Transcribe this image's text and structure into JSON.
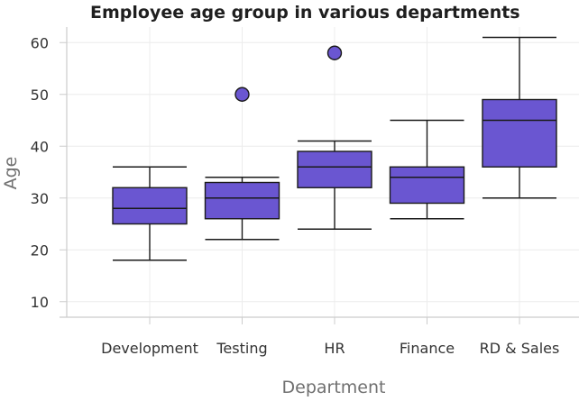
{
  "chart_data": {
    "type": "boxplot",
    "title": "Employee age group in various departments",
    "xlabel": "Department",
    "ylabel": "Age",
    "categories": [
      "Development",
      "Testing",
      "HR",
      "Finance",
      "RD & Sales"
    ],
    "y_ticks": [
      10,
      20,
      30,
      40,
      50,
      60
    ],
    "ylim": [
      7,
      63
    ],
    "grid": true,
    "boxes": [
      {
        "category": "Development",
        "min": 18,
        "q1": 25,
        "median": 28,
        "q3": 32,
        "max": 36,
        "outliers": []
      },
      {
        "category": "Testing",
        "min": 22,
        "q1": 26,
        "median": 30,
        "q3": 33,
        "max": 34,
        "outliers": [
          50
        ]
      },
      {
        "category": "HR",
        "min": 24,
        "q1": 32,
        "median": 36,
        "q3": 39,
        "max": 41,
        "outliers": [
          58
        ]
      },
      {
        "category": "Finance",
        "min": 26,
        "q1": 29,
        "median": 34,
        "q3": 36,
        "max": 45,
        "outliers": []
      },
      {
        "category": "RD & Sales",
        "min": 30,
        "q1": 36,
        "median": 45,
        "q3": 49,
        "max": 61,
        "outliers": []
      }
    ],
    "colors": {
      "box_fill": "#6a56d1",
      "box_stroke": "#1a1a1a",
      "grid": "#ececec",
      "axis": "#cccccc",
      "tick_label": "#333333",
      "axis_label": "#707070"
    }
  }
}
